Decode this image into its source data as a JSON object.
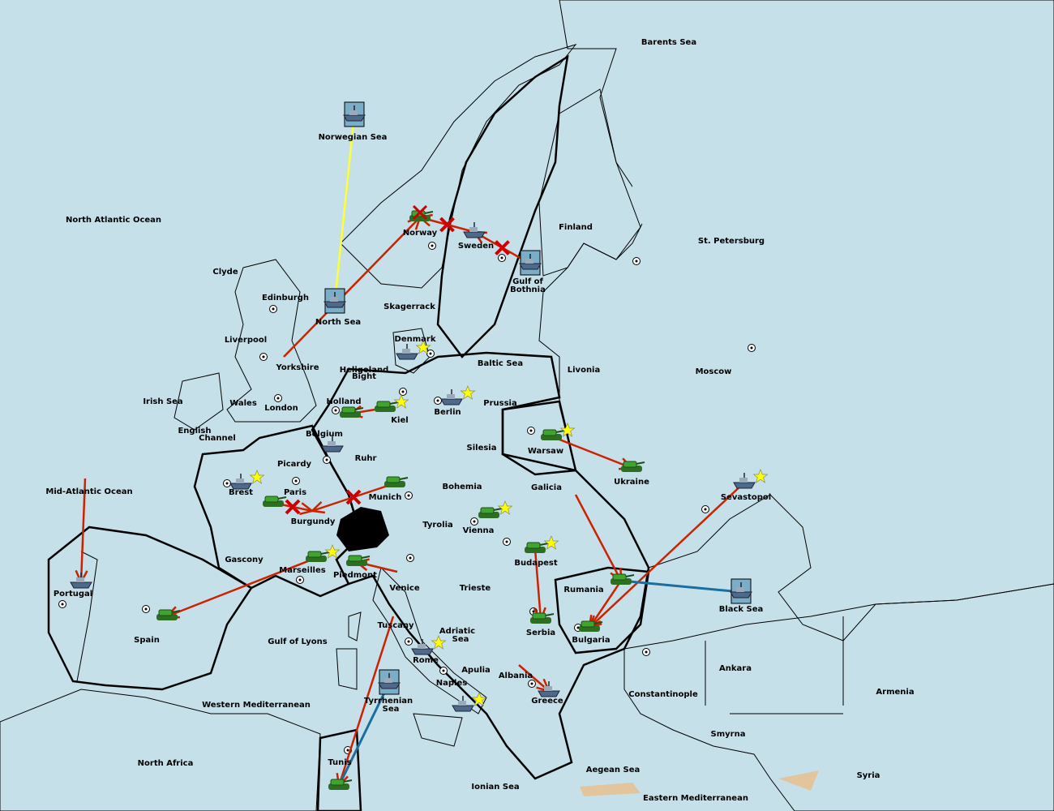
{
  "colors": {
    "sea": "#c6e0ea",
    "blue_power": "#7aaec8",
    "pink_power": "#c48e86",
    "neutral": "#e2c59c",
    "move_order": "#cc2200",
    "convoy_order": "#ffff33",
    "support_order": "#1a6ea0",
    "army": "#3fa52e",
    "fleet": "#4c6a8a",
    "star": "#ffff00"
  },
  "labels": [
    "Barents Sea",
    "Norwegian Sea",
    "North Atlantic Ocean",
    "Norway",
    "Sweden",
    "Finland",
    "St. Petersburg",
    "Gulf of",
    "Bothnia",
    "Clyde",
    "Edinburgh",
    "North Sea",
    "Skagerrack",
    "Liverpool",
    "Denmark",
    "Yorkshire",
    "Heligoland",
    "Bight",
    "Baltic Sea",
    "Livonia",
    "Moscow",
    "Irish Sea",
    "Wales",
    "London",
    "Holland",
    "Kiel",
    "Berlin",
    "Prussia",
    "English",
    "Channel",
    "Belgium",
    "Ruhr",
    "Silesia",
    "Warsaw",
    "Ukraine",
    "Sevastopol",
    "Picardy",
    "Brest",
    "Paris",
    "Mid-Atlantic Ocean",
    "Munich",
    "Bohemia",
    "Galicia",
    "Burgundy",
    "Tyrolia",
    "Vienna",
    "Budapest",
    "Gascony",
    "Marseilles",
    "Piedmont",
    "Venice",
    "Trieste",
    "Rumania",
    "Black Sea",
    "Portugal",
    "Spain",
    "Tuscany",
    "Adriatic",
    "Sea",
    "Serbia",
    "Bulgaria",
    "Gulf of Lyons",
    "Rome",
    "Apulia",
    "Ankara",
    "Albania",
    "Naples",
    "Constantinople",
    "Armenia",
    "Greece",
    "Tyrrhenian",
    "Sea ",
    "Western Mediterranean",
    "Smyrna",
    "North Africa",
    "Tunis",
    "Aegean Sea",
    "Syria",
    "Ionian Sea",
    "Eastern Mediterranean"
  ],
  "units": [
    {
      "type": "fleet",
      "at": "Norwegian Sea",
      "boxed": true
    },
    {
      "type": "fleet",
      "at": "North Sea",
      "boxed": true
    },
    {
      "type": "fleet",
      "at": "Gulf of Bothnia",
      "boxed": true
    },
    {
      "type": "fleet",
      "at": "Black Sea",
      "boxed": true
    },
    {
      "type": "fleet",
      "at": "Tyrrhenian Sea",
      "boxed": true
    },
    {
      "type": "army",
      "at": "Norway",
      "dislodged": true
    },
    {
      "type": "fleet",
      "at": "Sweden"
    },
    {
      "type": "fleet",
      "at": "Denmark",
      "star": true
    },
    {
      "type": "army",
      "at": "Kiel",
      "star": true
    },
    {
      "type": "army",
      "at": "Holland"
    },
    {
      "type": "fleet",
      "at": "Berlin",
      "star": true
    },
    {
      "type": "fleet",
      "at": "Belgium"
    },
    {
      "type": "army",
      "at": "Warsaw",
      "star": true
    },
    {
      "type": "army",
      "at": "Ukraine"
    },
    {
      "type": "fleet",
      "at": "Sevastopol",
      "star": true
    },
    {
      "type": "fleet",
      "at": "Brest",
      "star": true
    },
    {
      "type": "army",
      "at": "Paris"
    },
    {
      "type": "army",
      "at": "Munich"
    },
    {
      "type": "army",
      "at": "Vienna",
      "star": true
    },
    {
      "type": "army",
      "at": "Budapest",
      "star": true
    },
    {
      "type": "army",
      "at": "Marseilles",
      "star": true
    },
    {
      "type": "army",
      "at": "Piedmont"
    },
    {
      "type": "army",
      "at": "Rumania"
    },
    {
      "type": "army",
      "at": "Serbia"
    },
    {
      "type": "army",
      "at": "Bulgaria"
    },
    {
      "type": "army",
      "at": "Spain"
    },
    {
      "type": "fleet",
      "at": "Portugal"
    },
    {
      "type": "fleet",
      "at": "Rome",
      "star": true
    },
    {
      "type": "fleet",
      "at": "Naples",
      "star": true
    },
    {
      "type": "fleet",
      "at": "Greece"
    },
    {
      "type": "army",
      "at": "Tunis"
    }
  ],
  "orders": [
    {
      "kind": "convoy",
      "from": "Norwegian Sea",
      "to": "North Sea"
    },
    {
      "kind": "move",
      "from": "Yorkshire",
      "to": "Norway"
    },
    {
      "kind": "move",
      "from": "Sweden",
      "to": "Norway",
      "failed": true
    },
    {
      "kind": "move",
      "from": "Gulf of Bothnia",
      "to": "Sweden",
      "failed": true
    },
    {
      "kind": "move",
      "from": "Warsaw",
      "to": "Ukraine"
    },
    {
      "kind": "move",
      "from": "Sevastopol",
      "to": "Bulgaria"
    },
    {
      "kind": "move",
      "from": "Galicia",
      "to": "Rumania"
    },
    {
      "kind": "move",
      "from": "Budapest",
      "to": "Serbia"
    },
    {
      "kind": "move",
      "from": "Albania",
      "to": "Greece"
    },
    {
      "kind": "move",
      "from": "Marseilles",
      "to": "Spain"
    },
    {
      "kind": "move",
      "from": "Venice",
      "to": "Piedmont"
    },
    {
      "kind": "move",
      "from": "Mid-Atlantic Ocean",
      "to": "Portugal"
    },
    {
      "kind": "move",
      "from": "Tuscany",
      "to": "Tunis"
    },
    {
      "kind": "move",
      "from": "Munich",
      "to": "Burgundy",
      "failed": true
    },
    {
      "kind": "move",
      "from": "Paris",
      "to": "Burgundy",
      "failed": true
    },
    {
      "kind": "move",
      "from": "Kiel",
      "to": "Holland"
    },
    {
      "kind": "move",
      "from": "Rumania",
      "to": "Bulgaria"
    },
    {
      "kind": "support",
      "from": "Black Sea",
      "to": "Rumania"
    },
    {
      "kind": "support",
      "from": "Tyrrhenian Sea",
      "to": "Tunis"
    }
  ]
}
